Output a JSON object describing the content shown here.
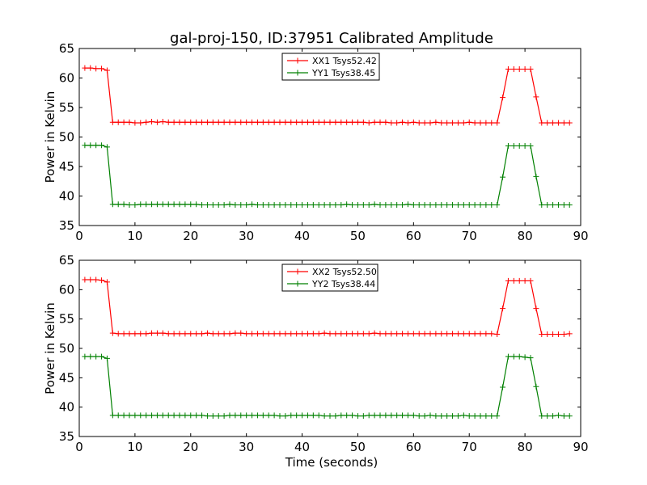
{
  "title": "gal-proj-150, ID:37951 Calibrated Amplitude",
  "xlabel": "Time (seconds)",
  "chart_data": [
    {
      "type": "line",
      "ylabel": "Power in Kelvin",
      "xlim": [
        0,
        90
      ],
      "ylim": [
        35,
        65
      ],
      "xticks": [
        0,
        10,
        20,
        30,
        40,
        50,
        60,
        70,
        80,
        90
      ],
      "yticks": [
        35,
        40,
        45,
        50,
        55,
        60,
        65
      ],
      "legend_position": "top-center",
      "x": [
        1,
        2,
        3,
        4,
        5,
        6,
        7,
        8,
        9,
        10,
        11,
        12,
        13,
        14,
        15,
        16,
        17,
        18,
        19,
        20,
        21,
        22,
        23,
        24,
        25,
        26,
        27,
        28,
        29,
        30,
        31,
        32,
        33,
        34,
        35,
        36,
        37,
        38,
        39,
        40,
        41,
        42,
        43,
        44,
        45,
        46,
        47,
        48,
        49,
        50,
        51,
        52,
        53,
        54,
        55,
        56,
        57,
        58,
        59,
        60,
        61,
        62,
        63,
        64,
        65,
        66,
        67,
        68,
        69,
        70,
        71,
        72,
        73,
        74,
        75,
        76,
        77,
        78,
        79,
        80,
        81,
        82,
        83,
        84,
        85,
        86,
        87,
        88
      ],
      "series": [
        {
          "name": "XX1 Tsys52.42",
          "color": "#ff0000",
          "values": [
            61.7,
            61.7,
            61.6,
            61.6,
            61.3,
            52.5,
            52.5,
            52.5,
            52.5,
            52.4,
            52.4,
            52.5,
            52.6,
            52.5,
            52.6,
            52.5,
            52.5,
            52.5,
            52.5,
            52.5,
            52.5,
            52.5,
            52.5,
            52.5,
            52.5,
            52.5,
            52.5,
            52.5,
            52.5,
            52.5,
            52.5,
            52.5,
            52.5,
            52.5,
            52.5,
            52.5,
            52.5,
            52.5,
            52.5,
            52.5,
            52.5,
            52.5,
            52.5,
            52.5,
            52.5,
            52.5,
            52.5,
            52.5,
            52.5,
            52.5,
            52.5,
            52.4,
            52.5,
            52.5,
            52.5,
            52.4,
            52.4,
            52.5,
            52.4,
            52.5,
            52.4,
            52.4,
            52.4,
            52.5,
            52.4,
            52.4,
            52.4,
            52.4,
            52.4,
            52.5,
            52.4,
            52.4,
            52.4,
            52.4,
            52.4,
            56.7,
            61.5,
            61.5,
            61.5,
            61.5,
            61.5,
            56.8,
            52.4,
            52.4,
            52.4,
            52.4,
            52.4,
            52.4
          ]
        },
        {
          "name": "YY1 Tsys38.45",
          "color": "#008000",
          "values": [
            48.6,
            48.6,
            48.6,
            48.6,
            48.3,
            38.6,
            38.6,
            38.6,
            38.5,
            38.5,
            38.6,
            38.6,
            38.6,
            38.6,
            38.6,
            38.6,
            38.6,
            38.6,
            38.6,
            38.6,
            38.6,
            38.5,
            38.5,
            38.5,
            38.5,
            38.5,
            38.6,
            38.5,
            38.5,
            38.5,
            38.6,
            38.5,
            38.5,
            38.5,
            38.5,
            38.5,
            38.5,
            38.5,
            38.5,
            38.5,
            38.5,
            38.5,
            38.5,
            38.5,
            38.5,
            38.5,
            38.5,
            38.6,
            38.5,
            38.5,
            38.5,
            38.5,
            38.6,
            38.5,
            38.5,
            38.5,
            38.5,
            38.5,
            38.6,
            38.5,
            38.5,
            38.5,
            38.5,
            38.5,
            38.5,
            38.5,
            38.5,
            38.5,
            38.5,
            38.5,
            38.5,
            38.5,
            38.5,
            38.5,
            38.5,
            43.2,
            48.5,
            48.5,
            48.5,
            48.5,
            48.5,
            43.3,
            38.5,
            38.5,
            38.5,
            38.5,
            38.5,
            38.5
          ]
        }
      ]
    },
    {
      "type": "line",
      "ylabel": "Power in Kelvin",
      "xlabel": "Time (seconds)",
      "xlim": [
        0,
        90
      ],
      "ylim": [
        35,
        65
      ],
      "xticks": [
        0,
        10,
        20,
        30,
        40,
        50,
        60,
        70,
        80,
        90
      ],
      "yticks": [
        35,
        40,
        45,
        50,
        55,
        60,
        65
      ],
      "legend_position": "top-center",
      "x": [
        1,
        2,
        3,
        4,
        5,
        6,
        7,
        8,
        9,
        10,
        11,
        12,
        13,
        14,
        15,
        16,
        17,
        18,
        19,
        20,
        21,
        22,
        23,
        24,
        25,
        26,
        27,
        28,
        29,
        30,
        31,
        32,
        33,
        34,
        35,
        36,
        37,
        38,
        39,
        40,
        41,
        42,
        43,
        44,
        45,
        46,
        47,
        48,
        49,
        50,
        51,
        52,
        53,
        54,
        55,
        56,
        57,
        58,
        59,
        60,
        61,
        62,
        63,
        64,
        65,
        66,
        67,
        68,
        69,
        70,
        71,
        72,
        73,
        74,
        75,
        76,
        77,
        78,
        79,
        80,
        81,
        82,
        83,
        84,
        85,
        86,
        87,
        88
      ],
      "series": [
        {
          "name": "XX2 Tsys52.50",
          "color": "#ff0000",
          "values": [
            61.7,
            61.7,
            61.7,
            61.6,
            61.3,
            52.6,
            52.5,
            52.5,
            52.5,
            52.5,
            52.5,
            52.5,
            52.6,
            52.6,
            52.6,
            52.5,
            52.5,
            52.5,
            52.5,
            52.5,
            52.5,
            52.5,
            52.6,
            52.5,
            52.5,
            52.5,
            52.5,
            52.6,
            52.6,
            52.5,
            52.5,
            52.5,
            52.5,
            52.5,
            52.5,
            52.5,
            52.5,
            52.5,
            52.5,
            52.5,
            52.5,
            52.5,
            52.5,
            52.6,
            52.5,
            52.5,
            52.5,
            52.5,
            52.5,
            52.5,
            52.5,
            52.5,
            52.6,
            52.5,
            52.5,
            52.5,
            52.5,
            52.5,
            52.5,
            52.5,
            52.5,
            52.5,
            52.5,
            52.5,
            52.5,
            52.5,
            52.5,
            52.5,
            52.5,
            52.5,
            52.5,
            52.5,
            52.5,
            52.5,
            52.4,
            56.8,
            61.5,
            61.5,
            61.5,
            61.5,
            61.5,
            56.8,
            52.4,
            52.4,
            52.4,
            52.4,
            52.4,
            52.5
          ]
        },
        {
          "name": "YY2 Tsys38.44",
          "color": "#008000",
          "values": [
            48.6,
            48.6,
            48.6,
            48.6,
            48.3,
            38.6,
            38.6,
            38.6,
            38.6,
            38.6,
            38.6,
            38.6,
            38.6,
            38.6,
            38.6,
            38.6,
            38.6,
            38.6,
            38.6,
            38.6,
            38.6,
            38.6,
            38.5,
            38.5,
            38.5,
            38.5,
            38.6,
            38.6,
            38.6,
            38.6,
            38.6,
            38.6,
            38.6,
            38.6,
            38.6,
            38.5,
            38.5,
            38.6,
            38.6,
            38.6,
            38.6,
            38.6,
            38.6,
            38.5,
            38.5,
            38.5,
            38.6,
            38.6,
            38.6,
            38.5,
            38.5,
            38.6,
            38.6,
            38.6,
            38.6,
            38.6,
            38.6,
            38.6,
            38.6,
            38.6,
            38.5,
            38.5,
            38.6,
            38.5,
            38.5,
            38.5,
            38.5,
            38.5,
            38.6,
            38.5,
            38.5,
            38.5,
            38.5,
            38.5,
            38.5,
            43.4,
            48.6,
            48.6,
            48.6,
            48.5,
            48.4,
            43.5,
            38.5,
            38.5,
            38.5,
            38.6,
            38.5,
            38.5
          ]
        }
      ]
    }
  ]
}
